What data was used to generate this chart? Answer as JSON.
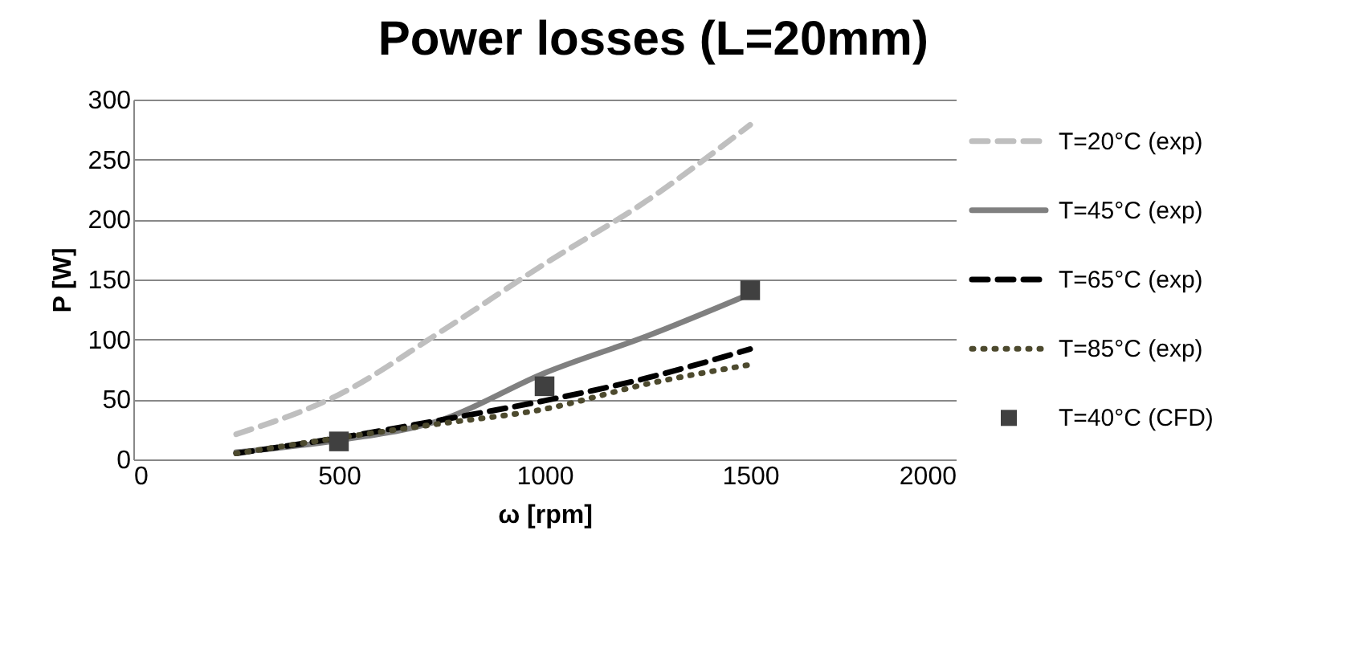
{
  "chart_data": {
    "type": "line",
    "title": "Power losses (L=20mm)",
    "xlabel": "ω [rpm]",
    "ylabel": "P [W]",
    "xlim": [
      0,
      2000
    ],
    "xticks": [
      0,
      500,
      1000,
      1500,
      2000
    ],
    "ylim": [
      0,
      300
    ],
    "yticks": [
      0,
      50,
      100,
      150,
      200,
      250,
      300
    ],
    "grid": "y",
    "legend": "right",
    "series": [
      {
        "name": "T=20°C (exp)",
        "color": "#bfbfbf",
        "line_style": "dashed",
        "x": [
          250,
          500,
          750,
          1000,
          1250,
          1500
        ],
        "values": [
          21,
          54,
          107,
          163,
          216,
          279
        ]
      },
      {
        "name": "T=45°C (exp)",
        "color": "#808080",
        "line_style": "solid",
        "x": [
          250,
          500,
          750,
          1000,
          1250,
          1500
        ],
        "values": [
          6,
          16,
          33,
          72,
          103,
          138
        ]
      },
      {
        "name": "T=65°C (exp)",
        "color": "#000000",
        "line_style": "dashed",
        "x": [
          250,
          500,
          750,
          1000,
          1250,
          1500
        ],
        "values": [
          5,
          18,
          33,
          49,
          68,
          92
        ]
      },
      {
        "name": "T=85°C (exp)",
        "color": "#4d4a2e",
        "line_style": "dotted",
        "x": [
          250,
          500,
          750,
          1000,
          1250,
          1500
        ],
        "values": [
          5,
          18,
          30,
          42,
          63,
          79
        ]
      },
      {
        "name": "T=40°C (CFD)",
        "type": "scatter",
        "marker": "square",
        "color": "#404040",
        "x": [
          500,
          1000,
          1500
        ],
        "values": [
          15,
          61,
          141
        ]
      }
    ]
  }
}
